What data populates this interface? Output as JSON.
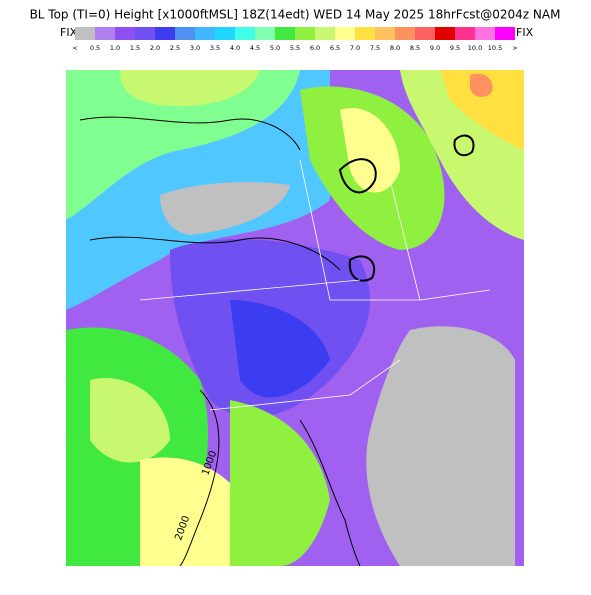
{
  "header": {
    "title": "BL Top (TI=0) Height [x1000ftMSL] 18Z(14edt) WED 14 May 2025 18hrFcst@0204z NAM",
    "fix_left": "FIX",
    "fix_right": "FIX"
  },
  "colorbar": {
    "colors": [
      "#c0c0c0",
      "#b080f0",
      "#9050f0",
      "#7050f0",
      "#3c3cf0",
      "#5090f0",
      "#40b8ff",
      "#20d8ff",
      "#40ffe8",
      "#80ffb0",
      "#40e840",
      "#90f040",
      "#c8f870",
      "#ffff90",
      "#ffe040",
      "#ffc060",
      "#ff9060",
      "#ff6060",
      "#e00000",
      "#ff3090",
      "#ff70e0",
      "#ff00ff"
    ],
    "labels": [
      "<",
      "0.5",
      "1.0",
      "1.5",
      "2.0",
      "2.5",
      "3.0",
      "3.5",
      "4.0",
      "4.5",
      "5.0",
      "5.5",
      "6.0",
      "6.5",
      "7.0",
      "7.5",
      "8.0",
      "8.5",
      "9.0",
      "9.5",
      "10.0",
      "10.5",
      ">"
    ]
  },
  "map": {
    "contour_labels": [
      "1000",
      "2000"
    ]
  }
}
